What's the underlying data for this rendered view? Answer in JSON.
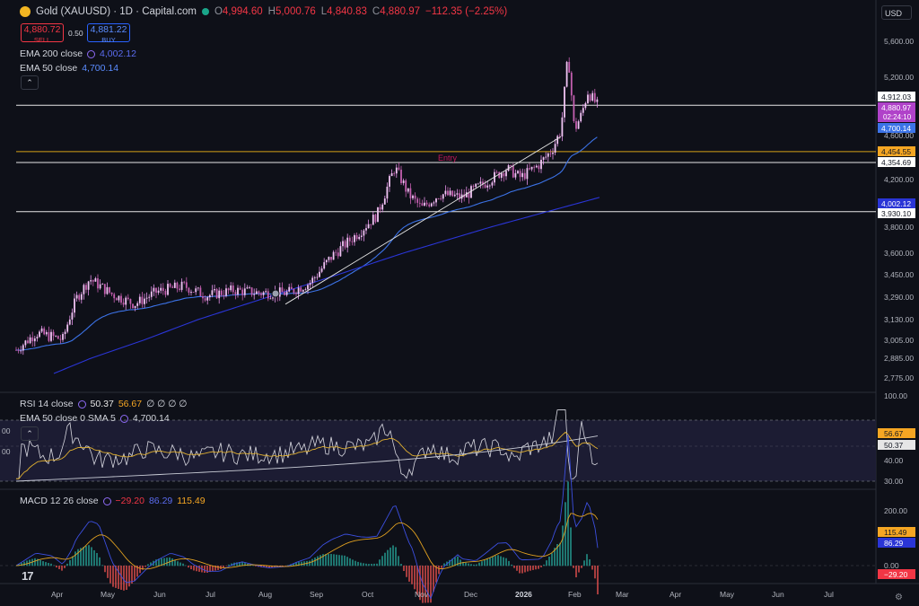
{
  "header": {
    "symbol": "Gold (XAUUSD) · 1D · Capital.com",
    "open_label": "O",
    "open": "4,994.60",
    "high_label": "H",
    "high": "5,000.76",
    "low_label": "L",
    "low": "4,840.83",
    "close_label": "C",
    "close": "4,880.97",
    "change": "−112.35 (−2.25%)"
  },
  "trade": {
    "sell_price": "4,880.72",
    "sell_label": "SELL",
    "spread": "0.50",
    "buy_price": "4,881.22",
    "buy_label": "BUY"
  },
  "indicators": {
    "ema200_label": "EMA 200 close",
    "ema200_value": "4,002.12",
    "ema50_label": "EMA 50 close",
    "ema50_value": "4,700.14"
  },
  "rsi": {
    "label": "RSI 14 close",
    "v1": "50.37",
    "v2": "56.67",
    "zeros": "∅ ∅ ∅ ∅",
    "sub_label": "EMA 50 close 0 SMA 5",
    "sub_value": "4,700.14"
  },
  "macd": {
    "label": "MACD 12 26 close",
    "v1": "−29.20",
    "v2": "86.29",
    "v3": "115.49"
  },
  "currency": "USD",
  "collapse_glyph": "⌃",
  "tv_logo": "17",
  "settings_glyph": "⚙",
  "colors": {
    "up": "#e291e8",
    "ema200": "#2a35d6",
    "ema50": "#3c73e8",
    "level": "#e6e6e6",
    "entry": "#d4a017",
    "bg": "#0e1018"
  },
  "chart_data": [
    {
      "type": "candlestick",
      "title": "Gold (XAUUSD) · 1D · Capital.com",
      "series": [
        {
          "name": "EMA 200 close"
        },
        {
          "name": "EMA 50 close"
        }
      ],
      "x_ticks": [
        "Apr",
        "May",
        "Jun",
        "Jul",
        "Aug",
        "Sep",
        "Oct",
        "Nov",
        "Dec",
        "2026",
        "Feb",
        "Mar",
        "Apr",
        "May",
        "Jun",
        "Jul"
      ],
      "y_ticks": [
        "5,600.00",
        "5,200.00",
        "4,600.00",
        "4,200.00",
        "3,800.00",
        "3,600.00",
        "3,450.00",
        "3,290.00",
        "3,130.00",
        "3,005.00",
        "2,885.00",
        "2,775.00"
      ],
      "levels": [
        {
          "value": 4912.03,
          "label": "4,912.03"
        },
        {
          "value": 4354.69,
          "label": "4,354.69"
        },
        {
          "value": 3930.1,
          "label": "3,930.10"
        }
      ],
      "entry": {
        "value": 4454.55,
        "label": "4,454.55",
        "text": "Entry"
      },
      "price_tags": [
        {
          "label": "4,880.97",
          "sub": "02:24:10"
        },
        {
          "label": "4,700.14"
        },
        {
          "label": "4,002.12"
        }
      ]
    },
    {
      "type": "line",
      "title": "RSI 14 close",
      "y_ticks": [
        "100.00",
        "40.00",
        "30.00"
      ],
      "left_ticks": [
        "00",
        "00"
      ],
      "tags": [
        "56.67",
        "50.37"
      ]
    },
    {
      "type": "bar",
      "title": "MACD 12 26 close",
      "y_ticks": [
        "200.00",
        "0.00"
      ],
      "tags": [
        "115.49",
        "86.29",
        "−29.20"
      ]
    }
  ]
}
